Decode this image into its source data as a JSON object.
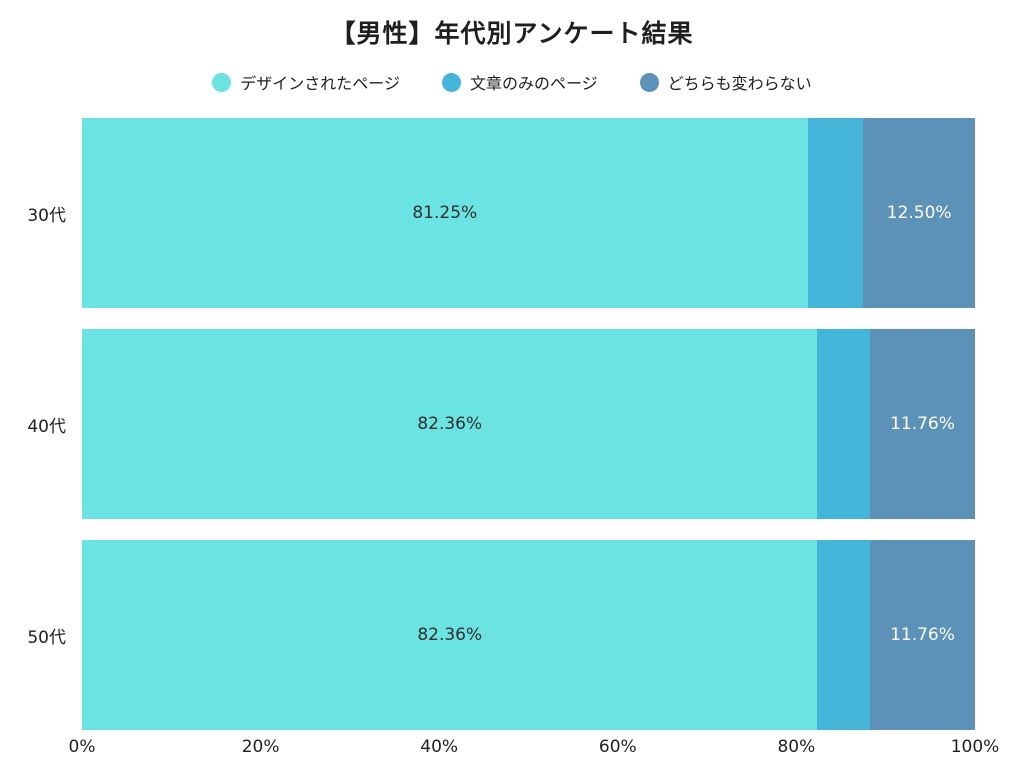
{
  "chart_data": {
    "type": "bar",
    "orientation": "horizontal_stacked",
    "title": "【男性】年代別アンケート結果",
    "categories": [
      "30代",
      "40代",
      "50代"
    ],
    "series": [
      {
        "name": "デザインされたページ",
        "color": "#6BE3E2",
        "label_color": "#2e2e2e",
        "values": [
          81.25,
          82.36,
          82.36
        ]
      },
      {
        "name": "文章のみのページ",
        "color": "#44B5D8",
        "label_color": "#2e2e2e",
        "values": [
          6.25,
          5.88,
          5.88
        ]
      },
      {
        "name": "どちらも変わらない",
        "color": "#5C92B8",
        "label_color": "#ffffff",
        "values": [
          12.5,
          11.76,
          11.76
        ]
      }
    ],
    "segment_labels": [
      [
        "81.25%",
        "",
        "12.50%"
      ],
      [
        "82.36%",
        "",
        "11.76%"
      ],
      [
        "82.36%",
        "",
        "11.76%"
      ]
    ],
    "x_ticks": [
      "0%",
      "20%",
      "40%",
      "60%",
      "80%",
      "100%"
    ],
    "xlim": [
      0,
      100
    ],
    "legend_position": "top",
    "grid": false,
    "background": "#FFFFFF"
  }
}
